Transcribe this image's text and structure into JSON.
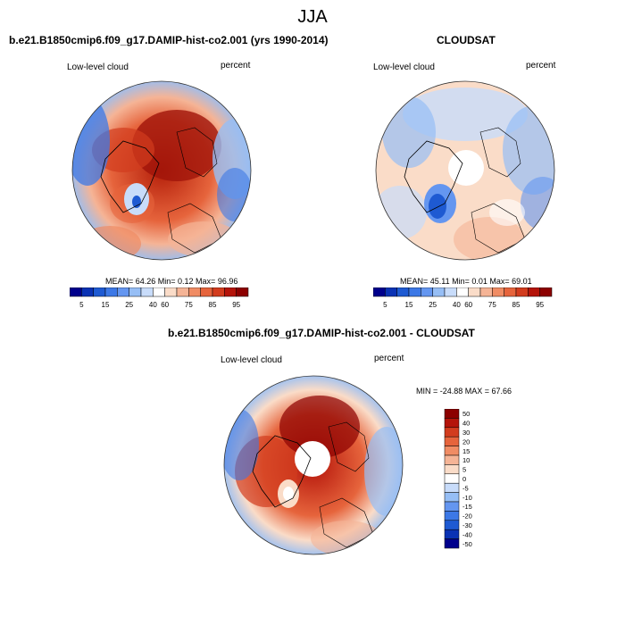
{
  "main_title": "JJA",
  "panels": [
    {
      "title": "b.e21.B1850cmip6.f09_g17.DAMIP-hist-co2.001 (yrs 1990-2014)",
      "left_label": "Low-level cloud",
      "right_label": "percent",
      "stats": "MEAN=  64.26  Min=   0.12  Max=  96.96",
      "colorbar_ticks": [
        "5",
        "15",
        "25",
        "40",
        "60",
        "75",
        "85",
        "95"
      ]
    },
    {
      "title": "CLOUDSAT",
      "left_label": "Low-level cloud",
      "right_label": "percent",
      "stats": "MEAN=  45.11  Min=   0.01  Max=  69.01",
      "colorbar_ticks": [
        "5",
        "15",
        "25",
        "40",
        "60",
        "75",
        "85",
        "95"
      ]
    },
    {
      "title": "b.e21.B1850cmip6.f09_g17.DAMIP-hist-co2.001 - CLOUDSAT",
      "left_label": "Low-level cloud",
      "right_label": "percent",
      "stats": "MIN = -24.88 MAX =  67.66",
      "colorbar_ticks": [
        "50",
        "40",
        "30",
        "20",
        "15",
        "10",
        "5",
        "0",
        "-5",
        "-10",
        "-15",
        "-20",
        "-30",
        "-40",
        "-50"
      ]
    }
  ],
  "colors": {
    "seq_palette": [
      "#00008c",
      "#0a32b4",
      "#1e5ad2",
      "#3c78e6",
      "#6496f0",
      "#96bef5",
      "#c8dcfa",
      "#ffffff",
      "#fadcc8",
      "#f5b496",
      "#f08c64",
      "#e6643c",
      "#d23c1e",
      "#b4140a",
      "#8c0000"
    ],
    "div_palette": [
      "#8c0000",
      "#b4140a",
      "#d23c1e",
      "#e6643c",
      "#f08c64",
      "#f5b496",
      "#fadcc8",
      "#ffffff",
      "#c8dcfa",
      "#96bef5",
      "#6496f0",
      "#3c78e6",
      "#1e5ad2",
      "#0a32b4",
      "#00008c"
    ]
  }
}
